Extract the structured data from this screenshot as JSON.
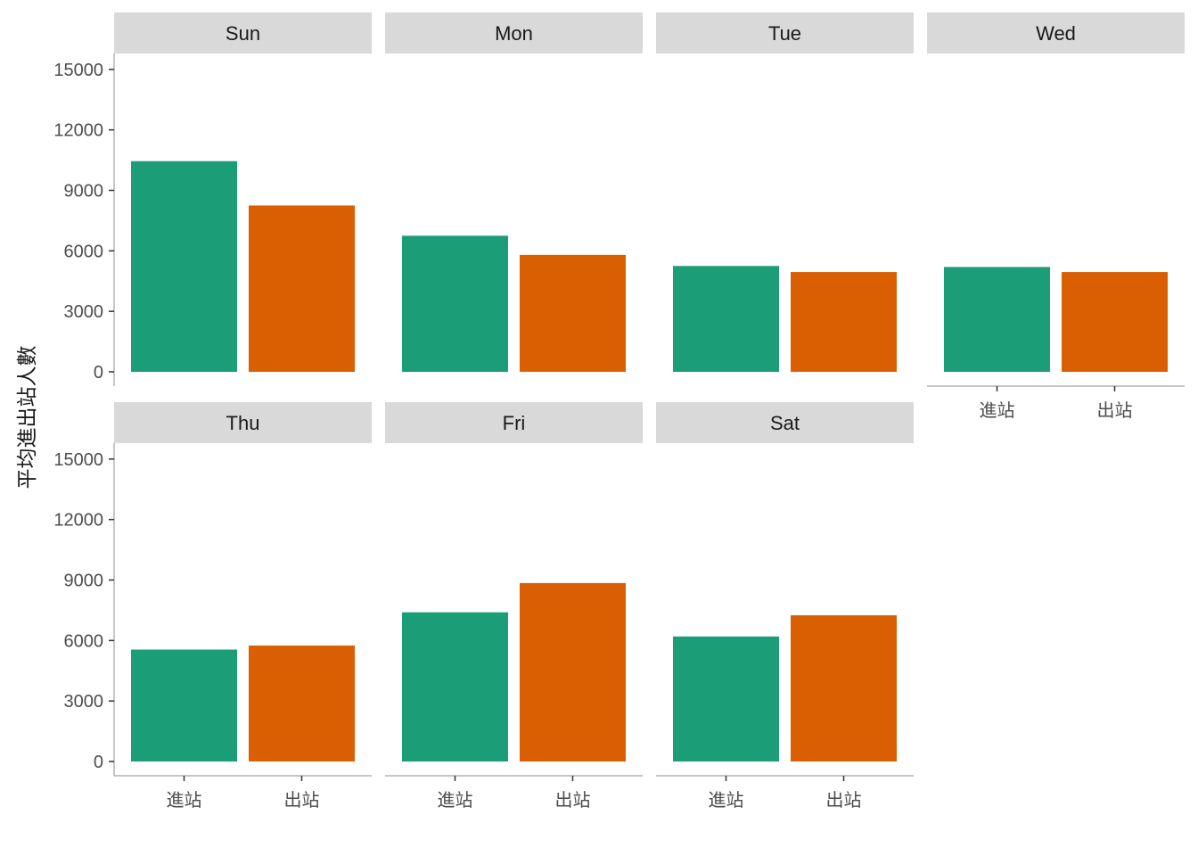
{
  "chart_data": {
    "type": "bar",
    "facet_layout": "wrap 4 columns",
    "categories": [
      "進站",
      "出站"
    ],
    "ylabel": "平均進出站人數",
    "xlabel": "",
    "ylim": [
      0,
      15700
    ],
    "yticks": [
      0,
      3000,
      6000,
      9000,
      12000,
      15000
    ],
    "grid": false,
    "legend": "none",
    "bar_colors": [
      "#1b9e77",
      "#d95f02"
    ],
    "strip_color": "#d9d9d9",
    "axis_color": "#b3b3b3",
    "facets": [
      {
        "name": "Sun",
        "values": [
          10450,
          8250
        ]
      },
      {
        "name": "Mon",
        "values": [
          6750,
          5800
        ]
      },
      {
        "name": "Tue",
        "values": [
          5250,
          4950
        ]
      },
      {
        "name": "Wed",
        "values": [
          5200,
          4950
        ]
      },
      {
        "name": "Thu",
        "values": [
          5550,
          5750
        ]
      },
      {
        "name": "Fri",
        "values": [
          7400,
          8850
        ]
      },
      {
        "name": "Sat",
        "values": [
          6200,
          7250
        ]
      }
    ]
  }
}
